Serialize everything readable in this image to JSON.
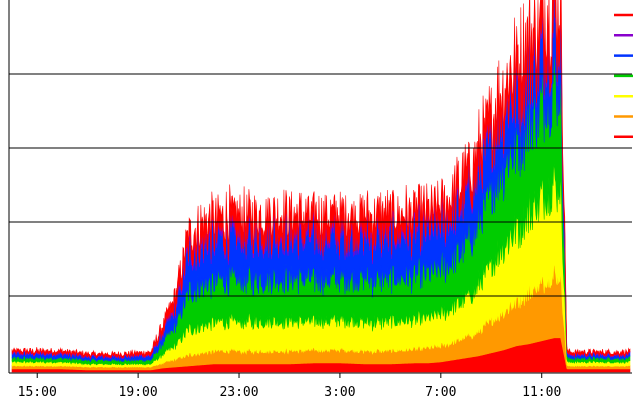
{
  "chart_data": {
    "type": "area",
    "stacked": true,
    "title": "",
    "xlabel": "",
    "ylabel": "",
    "grid": "horizontal",
    "legend_position": "top-right",
    "x_tick_labels": [
      "15:00",
      "19:00",
      "23:00",
      "3:00",
      "7:00",
      "11:00"
    ],
    "x": [
      "14:00",
      "15:00",
      "16:00",
      "17:00",
      "18:00",
      "19:00",
      "19:30",
      "20:00",
      "20:30",
      "21:00",
      "21:30",
      "22:00",
      "23:00",
      "0:00",
      "1:00",
      "2:00",
      "3:00",
      "4:00",
      "5:00",
      "6:00",
      "6:30",
      "7:00",
      "7:30",
      "8:00",
      "8:30",
      "9:00",
      "9:30",
      "10:00",
      "10:30",
      "11:00",
      "11:30",
      "11:45",
      "12:00",
      "13:00",
      "14:00",
      "14:30"
    ],
    "series": [
      {
        "color": "#ff0000",
        "values": [
          3,
          3,
          3,
          2,
          2,
          2,
          2,
          4,
          5,
          6,
          7,
          8,
          8,
          8,
          8,
          9,
          9,
          8,
          8,
          9,
          9,
          10,
          12,
          14,
          16,
          19,
          22,
          26,
          28,
          31,
          34,
          34,
          3,
          3,
          3,
          3
        ]
      },
      {
        "color": "#ff9900",
        "values": [
          3,
          3,
          3,
          3,
          3,
          3,
          3,
          5,
          8,
          11,
          12,
          13,
          13,
          13,
          13,
          13,
          13,
          13,
          13,
          14,
          15,
          16,
          18,
          21,
          24,
          32,
          38,
          45,
          52,
          58,
          62,
          62,
          3,
          3,
          3,
          3
        ]
      },
      {
        "color": "#ffff00",
        "values": [
          4,
          4,
          4,
          3,
          3,
          3,
          3,
          9,
          14,
          25,
          27,
          28,
          29,
          30,
          29,
          29,
          30,
          29,
          29,
          29,
          30,
          31,
          34,
          38,
          46,
          56,
          66,
          72,
          78,
          84,
          90,
          92,
          4,
          4,
          4,
          4
        ]
      },
      {
        "color": "#00cc00",
        "values": [
          4,
          4,
          4,
          4,
          4,
          4,
          4,
          12,
          20,
          37,
          40,
          41,
          42,
          43,
          43,
          42,
          42,
          43,
          43,
          44,
          44,
          45,
          48,
          55,
          62,
          72,
          80,
          86,
          90,
          94,
          98,
          100,
          4,
          4,
          4,
          4
        ]
      },
      {
        "color": "#0033ff",
        "values": [
          4,
          4,
          4,
          3,
          3,
          4,
          4,
          10,
          18,
          38,
          40,
          41,
          42,
          42,
          42,
          41,
          42,
          42,
          42,
          42,
          42,
          42,
          44,
          47,
          49,
          52,
          52,
          52,
          50,
          50,
          49,
          50,
          3,
          3,
          3,
          3
        ]
      },
      {
        "color": "#8800cc",
        "values": [
          1,
          1,
          1,
          1,
          1,
          1,
          1,
          2,
          3,
          5,
          5,
          5,
          5,
          5,
          5,
          5,
          5,
          5,
          5,
          5,
          5,
          5,
          5,
          5,
          5,
          5,
          5,
          5,
          5,
          5,
          5,
          5,
          1,
          1,
          1,
          1
        ]
      },
      {
        "color": "#ff0000",
        "values": [
          2,
          2,
          2,
          2,
          2,
          2,
          3,
          6,
          10,
          15,
          16,
          16,
          16,
          16,
          16,
          16,
          16,
          16,
          16,
          16,
          15,
          15,
          16,
          17,
          18,
          20,
          22,
          24,
          26,
          28,
          30,
          30,
          2,
          2,
          2,
          2
        ]
      }
    ]
  }
}
